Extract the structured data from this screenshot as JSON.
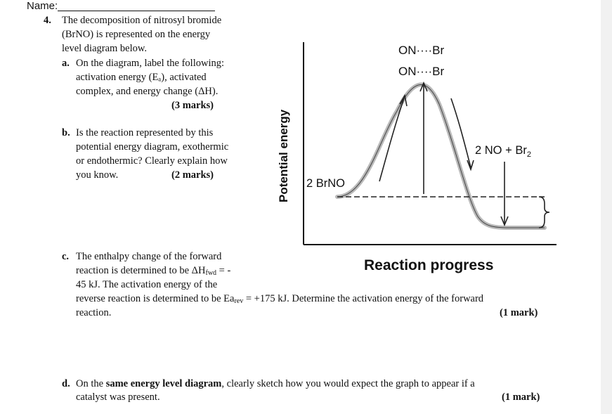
{
  "header": {
    "name_label": "Name:"
  },
  "question": {
    "number": "4.",
    "intro": [
      "The decomposition of nitrosyl bromide",
      "(BrNO) is represented on the energy",
      "level diagram below."
    ],
    "part_a": {
      "letter": "a.",
      "lines": [
        "On the diagram, label the following:",
        "activation energy (Eₐ), activated",
        "complex, and energy change (ΔH)."
      ],
      "marks": "(3 marks)"
    },
    "part_b": {
      "letter": "b.",
      "lines": [
        "Is the reaction represented by this",
        "potential energy diagram, exothermic",
        "or endothermic? Clearly explain how",
        "you know."
      ],
      "marks": "(2 marks)"
    },
    "part_c": {
      "letter": "c.",
      "line1": "The enthalpy change of the forward",
      "line2_pre": "reaction is determined to be ΔH",
      "line2_sub": "fwd",
      "line2_post": " = -",
      "line3": "45 kJ. The activation energy of the",
      "line4_pre": "reverse reaction is determined to be Ea",
      "line4_sub": "rev",
      "line4_post": " = +175 kJ. Determine the activation energy of the forward",
      "line5": "reaction.",
      "marks": "(1 mark)"
    },
    "part_d": {
      "letter": "d.",
      "pre": "On the ",
      "bold": "same energy level diagram",
      "post": ", clearly sketch how you would expect the graph to appear if a",
      "line2": "catalyst was present.",
      "marks": "(1 mark)"
    }
  },
  "diagram": {
    "y_axis_label": "Potential energy",
    "x_axis_label": "Reaction progress",
    "complex_label_1": "ON····Br",
    "complex_label_2": "ON····Br",
    "reactant_label": "2 BrNO",
    "product_label": "2 NO + Br",
    "product_sub": "2"
  }
}
